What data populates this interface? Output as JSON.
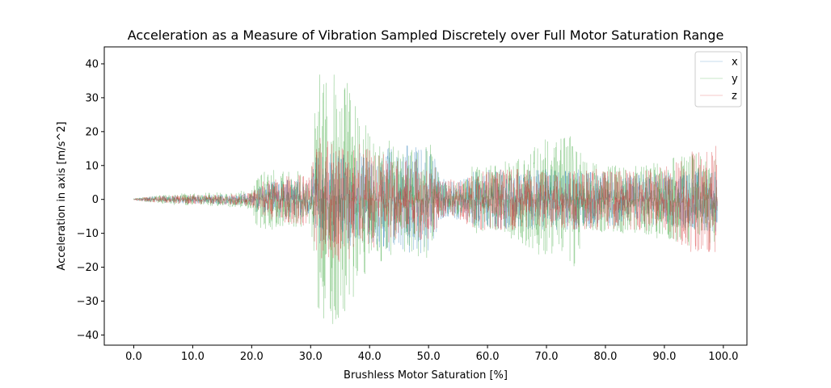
{
  "chart_data": {
    "type": "line",
    "title": "Acceleration as a Measure of Vibration Sampled Discretely over Full Motor Saturation Range",
    "xlabel": "Brushless Motor Saturation [%]",
    "ylabel": "Acceleration in axis [m/s^2]",
    "xlim": [
      -5,
      104
    ],
    "ylim": [
      -43,
      45
    ],
    "xticks": [
      0,
      10,
      20,
      30,
      40,
      50,
      60,
      70,
      80,
      90,
      100
    ],
    "xtick_labels": [
      "0.0",
      "10.0",
      "20.0",
      "30.0",
      "40.0",
      "50.0",
      "60.0",
      "70.0",
      "80.0",
      "90.0",
      "100.0"
    ],
    "yticks": [
      -40,
      -30,
      -20,
      -10,
      0,
      10,
      20,
      30,
      40
    ],
    "ytick_labels": [
      "−40",
      "−30",
      "−20",
      "−10",
      "0",
      "10",
      "20",
      "30",
      "40"
    ],
    "grid": false,
    "legend": "top-right",
    "x_range": [
      0,
      99
    ],
    "series": [
      {
        "name": "x",
        "color": "#1f77b4",
        "envelope": [
          [
            0,
            0.3
          ],
          [
            4,
            1.0
          ],
          [
            8,
            1.2
          ],
          [
            12,
            1.3
          ],
          [
            16,
            1.5
          ],
          [
            20,
            2.0
          ],
          [
            21,
            4.0
          ],
          [
            25,
            6.0
          ],
          [
            30,
            6.0
          ],
          [
            31,
            13.0
          ],
          [
            35,
            14.0
          ],
          [
            40,
            14.0
          ],
          [
            45,
            16.0
          ],
          [
            50,
            16.0
          ],
          [
            51,
            14.0
          ],
          [
            52,
            6.0
          ],
          [
            56,
            6.0
          ],
          [
            57,
            8.0
          ],
          [
            60,
            9.0
          ],
          [
            65,
            9.0
          ],
          [
            70,
            9.0
          ],
          [
            75,
            9.0
          ],
          [
            80,
            8.0
          ],
          [
            85,
            8.0
          ],
          [
            90,
            8.0
          ],
          [
            95,
            9.0
          ],
          [
            99,
            10.0
          ]
        ]
      },
      {
        "name": "y",
        "color": "#2ca02c",
        "envelope": [
          [
            0,
            0.3
          ],
          [
            4,
            1.2
          ],
          [
            8,
            1.8
          ],
          [
            12,
            2.0
          ],
          [
            16,
            2.2
          ],
          [
            20,
            3.0
          ],
          [
            21,
            9.0
          ],
          [
            25,
            9.0
          ],
          [
            30,
            8.0
          ],
          [
            31,
            38.0
          ],
          [
            33,
            40.0
          ],
          [
            36,
            36.0
          ],
          [
            40,
            20.0
          ],
          [
            45,
            16.0
          ],
          [
            50,
            18.0
          ],
          [
            51,
            12.0
          ],
          [
            52,
            5.0
          ],
          [
            56,
            5.0
          ],
          [
            57,
            10.0
          ],
          [
            60,
            10.0
          ],
          [
            65,
            12.0
          ],
          [
            70,
            18.0
          ],
          [
            75,
            20.0
          ],
          [
            76,
            12.0
          ],
          [
            80,
            10.0
          ],
          [
            85,
            10.0
          ],
          [
            90,
            12.0
          ],
          [
            95,
            14.0
          ],
          [
            99,
            13.0
          ]
        ]
      },
      {
        "name": "z",
        "color": "#d62728",
        "envelope": [
          [
            0,
            0.3
          ],
          [
            4,
            1.0
          ],
          [
            8,
            1.3
          ],
          [
            12,
            1.5
          ],
          [
            16,
            1.5
          ],
          [
            20,
            2.0
          ],
          [
            21,
            5.0
          ],
          [
            25,
            7.0
          ],
          [
            30,
            8.0
          ],
          [
            31,
            18.0
          ],
          [
            35,
            19.0
          ],
          [
            40,
            15.0
          ],
          [
            45,
            12.0
          ],
          [
            50,
            12.0
          ],
          [
            51,
            10.0
          ],
          [
            52,
            6.0
          ],
          [
            56,
            6.0
          ],
          [
            57,
            9.0
          ],
          [
            60,
            9.0
          ],
          [
            65,
            9.0
          ],
          [
            70,
            9.0
          ],
          [
            75,
            9.0
          ],
          [
            80,
            9.0
          ],
          [
            85,
            9.0
          ],
          [
            90,
            10.0
          ],
          [
            94,
            16.0
          ],
          [
            99,
            16.0
          ]
        ]
      }
    ]
  }
}
